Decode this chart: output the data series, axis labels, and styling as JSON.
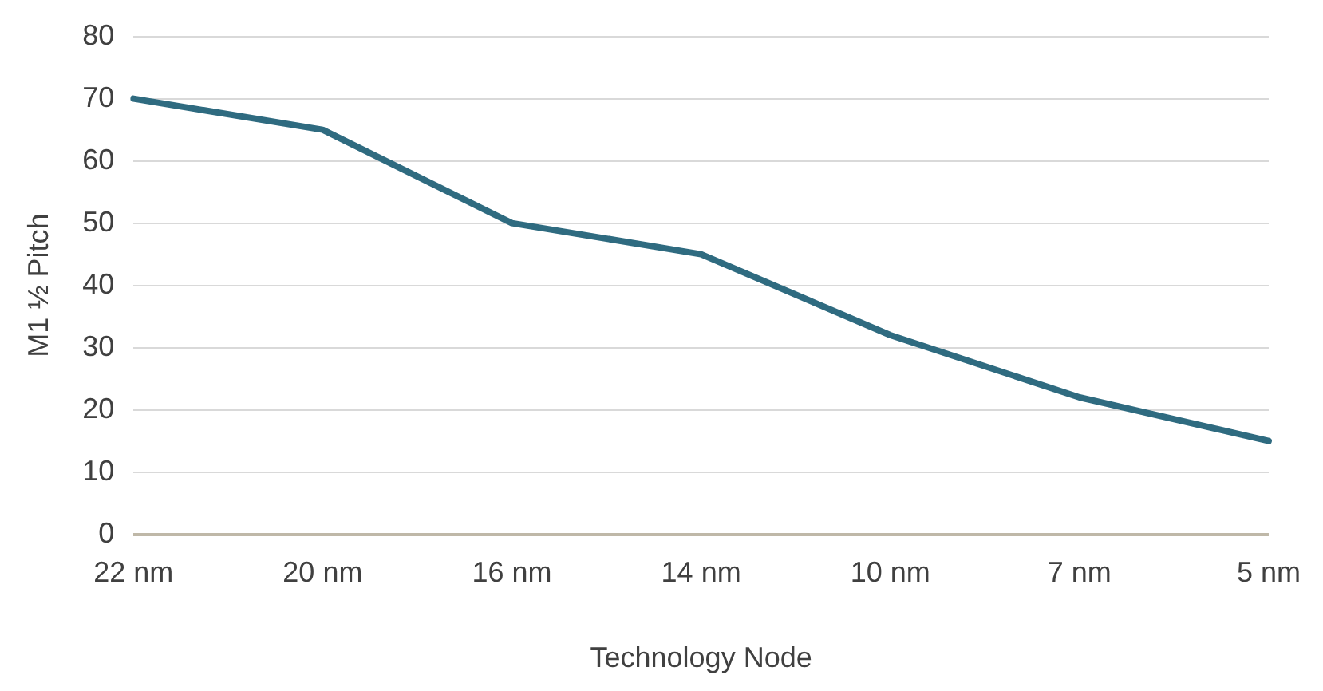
{
  "chart_data": {
    "type": "line",
    "xlabel": "Technology Node",
    "ylabel": "M1 ½ Pitch",
    "categories": [
      "22 nm",
      "20 nm",
      "16 nm",
      "14 nm",
      "10 nm",
      "7 nm",
      "5 nm"
    ],
    "values": [
      70,
      65,
      50,
      45,
      32,
      22,
      15
    ],
    "color": "#2f6b80",
    "ylim": [
      0,
      80
    ],
    "yticks": [
      0,
      10,
      20,
      30,
      40,
      50,
      60,
      70,
      80
    ],
    "grid": "y",
    "legend": false,
    "marker": "none",
    "line_style": "solid"
  }
}
